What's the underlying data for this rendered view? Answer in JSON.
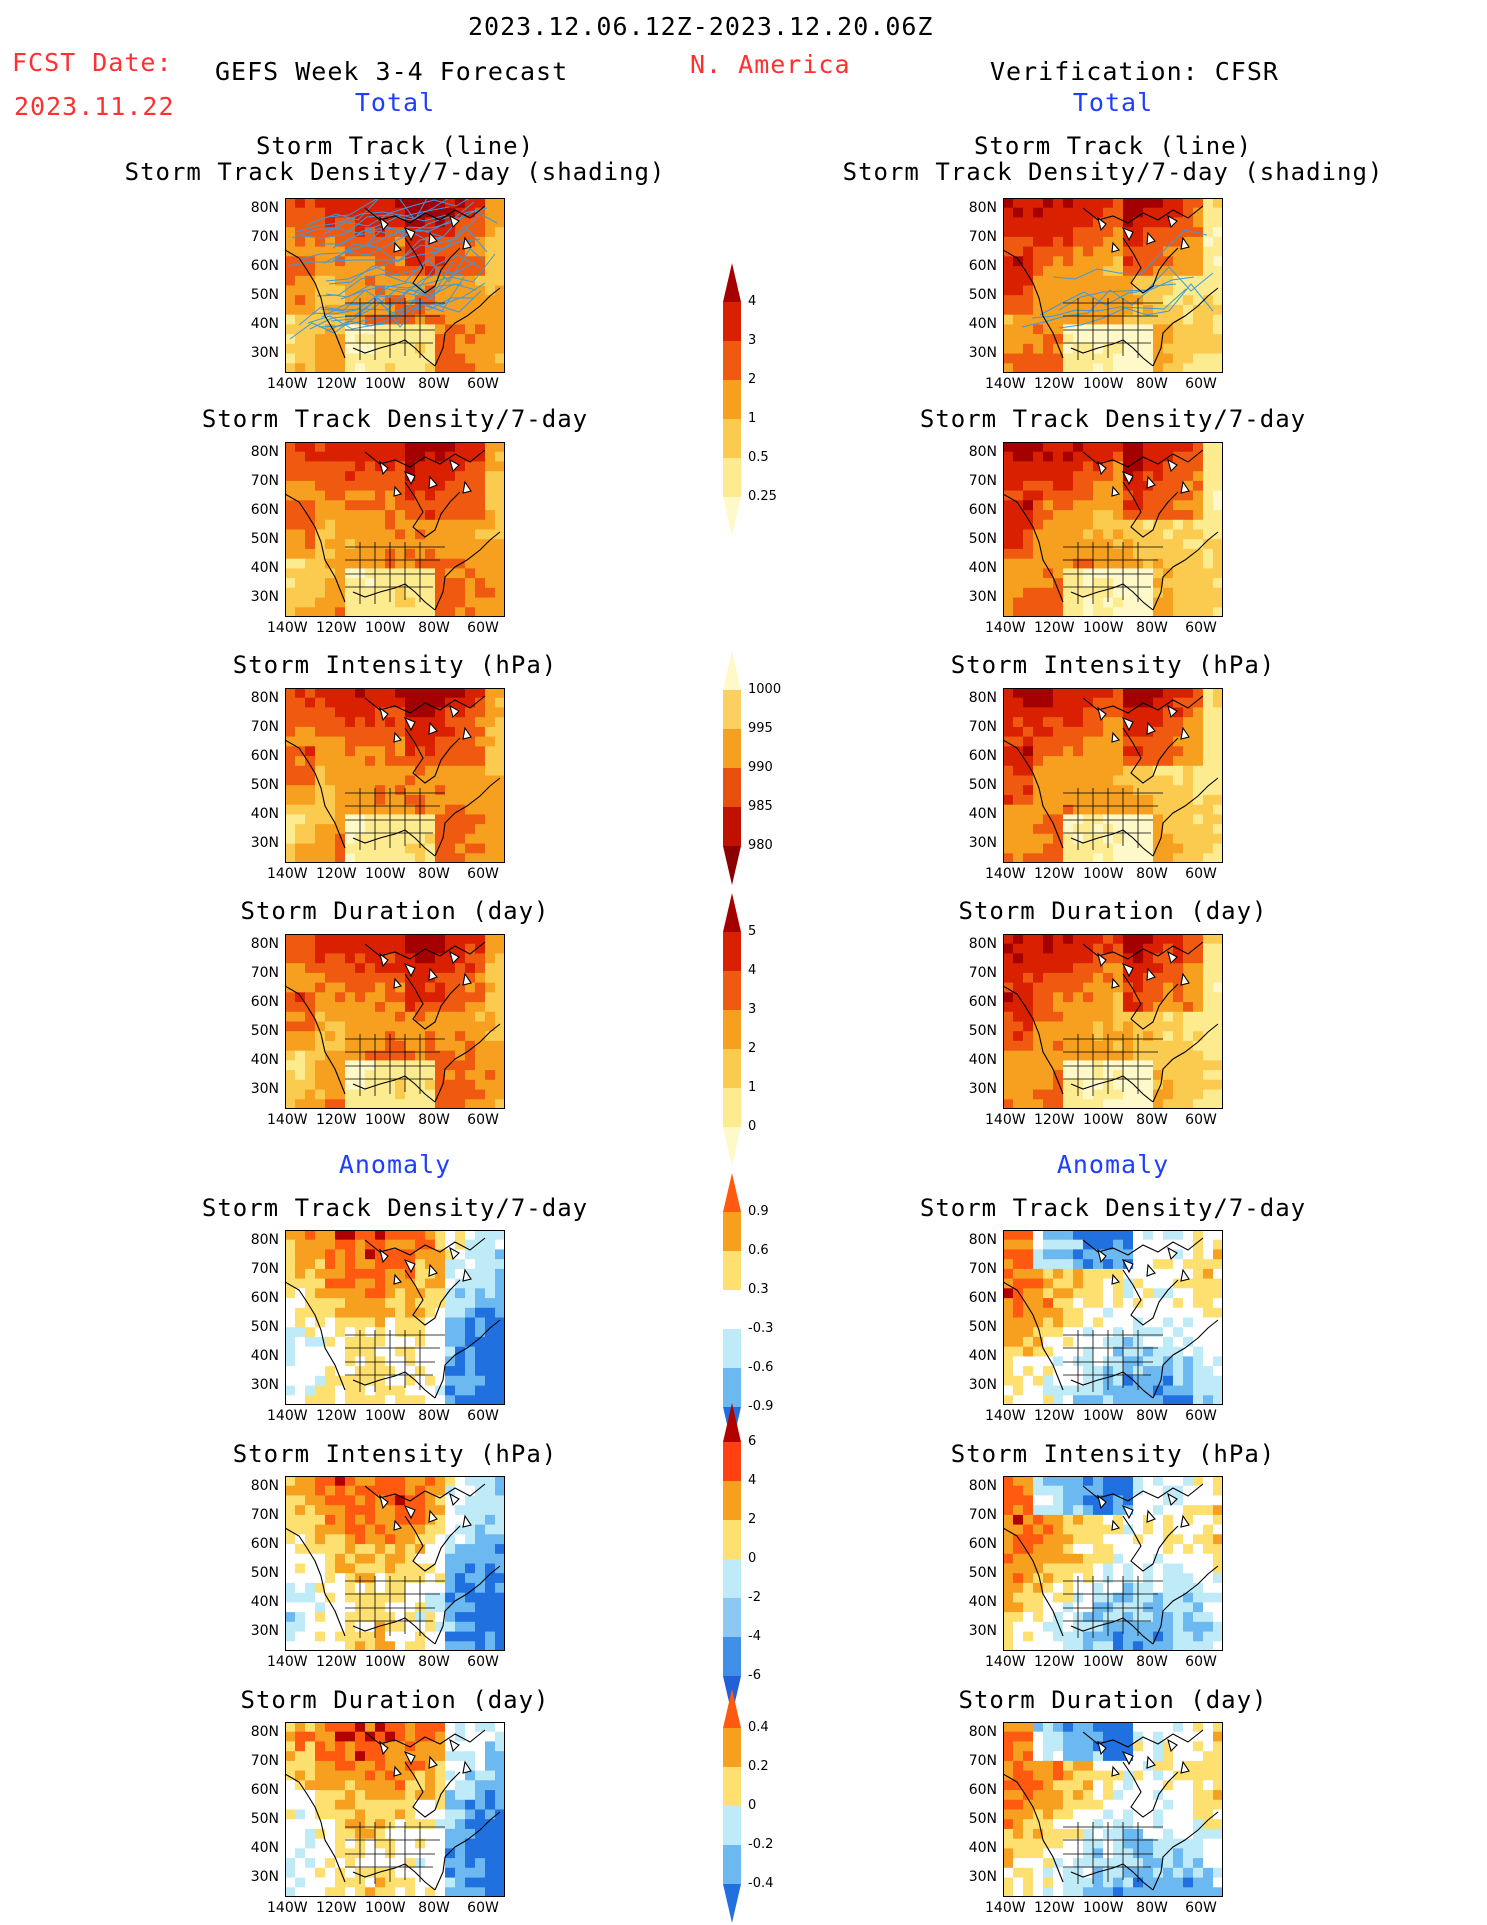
{
  "header": {
    "date_range": "2023.12.06.12Z-2023.12.20.06Z",
    "region": "N. America",
    "fcst_label": "FCST Date:",
    "fcst_date": "2023.11.22",
    "left_title": "GEFS Week 3-4 Forecast",
    "right_title": "Verification: CFSR",
    "left_section": "Total",
    "right_section": "Total"
  },
  "anomaly_label": "Anomaly",
  "panel_titles": {
    "track_line": "Storm Track (line)",
    "track_shading": "Storm Track Density/7-day (shading)",
    "density": "Storm Track Density/7-day",
    "intensity": "Storm Intensity (hPa)",
    "duration": "Storm Duration (day)"
  },
  "axes": {
    "lat_ticks": [
      "80N",
      "70N",
      "60N",
      "50N",
      "40N",
      "30N"
    ],
    "lon_ticks": [
      "140W",
      "120W",
      "100W",
      "80W",
      "60W"
    ]
  },
  "colorbars": {
    "density": {
      "labels": [
        "4",
        "3",
        "2",
        "1",
        "0.5",
        "0.25"
      ],
      "colors": [
        "#a50000",
        "#d92000",
        "#f05a10",
        "#f7a020",
        "#fbcb50",
        "#fdeb90",
        "#fff8c8"
      ]
    },
    "intensity": {
      "labels": [
        "1000",
        "995",
        "990",
        "985",
        "980"
      ],
      "colors": [
        "#fff8c8",
        "#fbd060",
        "#f4a020",
        "#e85010",
        "#c01000",
        "#8a0000"
      ]
    },
    "duration": {
      "labels": [
        "5",
        "4",
        "3",
        "2",
        "1",
        "0"
      ],
      "colors": [
        "#a50000",
        "#d92000",
        "#f05a10",
        "#f7a020",
        "#fbcb50",
        "#fdeb90",
        "#fff8c8"
      ]
    },
    "anom_density": {
      "labels": [
        "0.9",
        "0.6",
        "0.3",
        "-0.3",
        "-0.6",
        "-0.9"
      ],
      "colors": [
        "#ff5a10",
        "#f7a020",
        "#fde070",
        "#ffffff",
        "#bfeaf8",
        "#6cb8f0",
        "#2070e0"
      ]
    },
    "anom_intensity": {
      "labels": [
        "6",
        "4",
        "2",
        "0",
        "-2",
        "-4",
        "-6"
      ],
      "colors": [
        "#b00000",
        "#ff4010",
        "#f7a020",
        "#fde070",
        "#bfeaf8",
        "#8cc8f4",
        "#4090e8",
        "#2060d8"
      ]
    },
    "anom_duration": {
      "labels": [
        "0.4",
        "0.2",
        "0",
        "-0.2",
        "-0.4"
      ],
      "colors": [
        "#ff5a10",
        "#f7a020",
        "#fde070",
        "#bfeaf8",
        "#6cb8f0",
        "#2070e0"
      ]
    }
  }
}
